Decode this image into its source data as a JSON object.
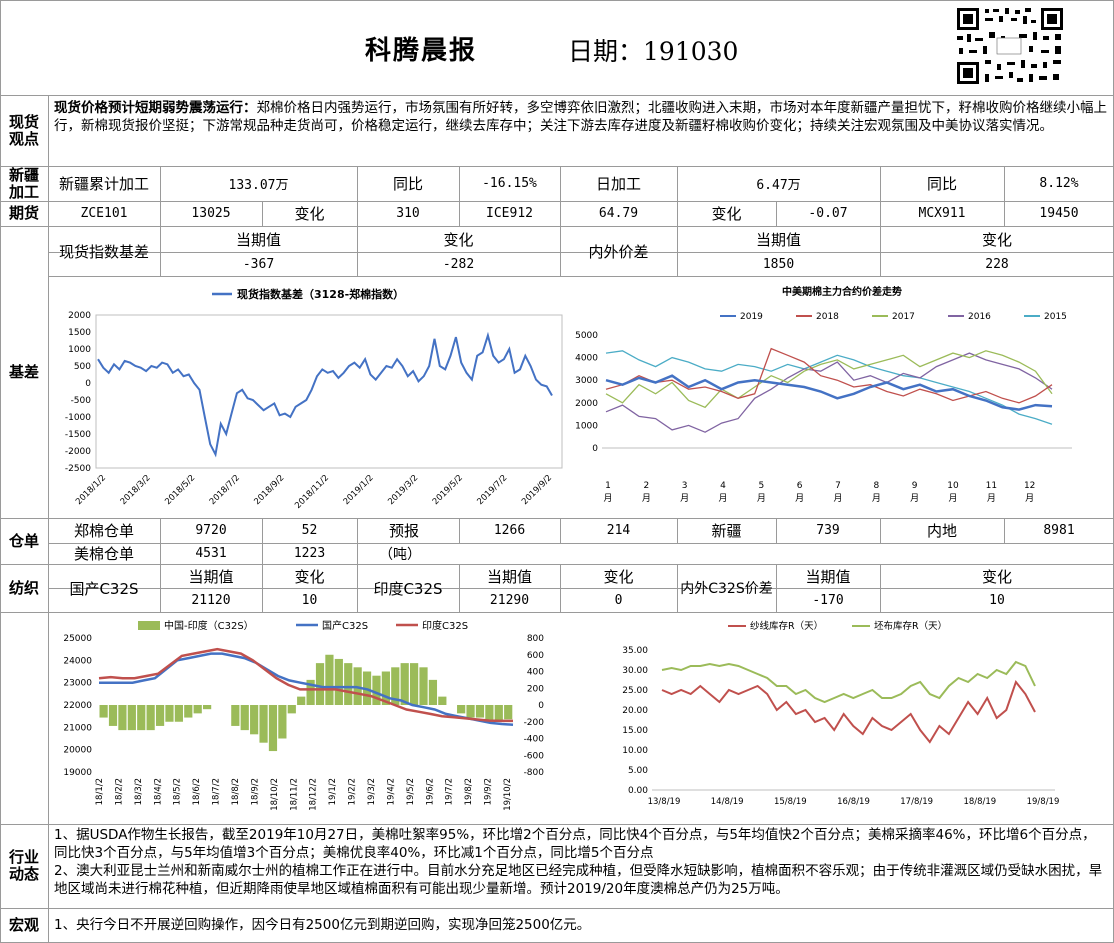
{
  "header": {
    "title": "科腾晨报",
    "date_label": "日期：",
    "date": "191030"
  },
  "sections": {
    "spot": "现货观点",
    "xinjiang": "新疆加工",
    "futures": "期货",
    "basis": "基差",
    "warehouse": "仓单",
    "yarn": "纺织",
    "industry": "行业动态",
    "macro": "宏观"
  },
  "spot_view": {
    "headline": "现货价格预计短期弱势震荡运行：",
    "body": "郑棉价格日内强势运行，市场氛围有所好转，多空博弈依旧激烈；北疆收购进入末期，市场对本年度新疆产量担忧下，籽棉收购价格继续小幅上行，新棉现货报价坚挺；下游常规品种走货尚可，价格稳定运行，继续去库存中；关注下游去库存进度及新疆籽棉收购价变化；持续关注宏观氛围及中美协议落实情况。"
  },
  "xinjiang": {
    "c1": "新疆累计加工",
    "c2": "133.07万",
    "c3": "同比",
    "c4": "-16.15%",
    "c5": "日加工",
    "c6": "6.47万",
    "c7": "同比",
    "c8": "8.12%"
  },
  "futures": {
    "c1": "ZCE101",
    "c2": "13025",
    "c3": "变化",
    "c4": "310",
    "c5": "ICE912",
    "c6": "64.79",
    "c7": "变化",
    "c8": "-0.07",
    "c9": "MCX911",
    "c10": "19450"
  },
  "basis_table": {
    "spot_label": "现货指数基差",
    "h1": "当期值",
    "v1": "-367",
    "h2": "变化",
    "v2": "-282",
    "diff_label": "内外价差",
    "h3": "当期值",
    "v3": "1850",
    "h4": "变化",
    "v4": "228"
  },
  "warehouse": {
    "zc_label": "郑棉仓单",
    "zc_v1": "9720",
    "zc_v2": "52",
    "forecast": "预报",
    "unit": "（吨）",
    "fc_v1": "1266",
    "fc_v2": "214",
    "xj_label": "新疆",
    "xj_v": "739",
    "nd_label": "内地",
    "nd_v": "8981",
    "us_label": "美棉仓单",
    "us_v1": "4531",
    "us_v2": "1223"
  },
  "yarn": {
    "dom_label": "国产C32S",
    "h1": "当期值",
    "v1": "21120",
    "h2": "变化",
    "v2": "10",
    "ind_label": "印度C32S",
    "h3": "当期值",
    "v3": "21290",
    "h4": "变化",
    "v4": "0",
    "diff_label": "内外C32S价差",
    "h5": "当期值",
    "v5": "-170",
    "h6": "变化",
    "v6": "10"
  },
  "industry": {
    "item1": "1、据USDA作物生长报告，截至2019年10月27日，美棉吐絮率95%，环比增2个百分点，同比快4个百分点，与5年均值快2个百分点；美棉采摘率46%，环比增6个百分点，同比快3个百分点，与5年均值增3个百分点；美棉优良率40%，环比减1个百分点，同比增5个百分点",
    "item2": "2、澳大利亚昆士兰州和新南威尔士州的植棉工作正在进行中。目前水分充足地区已经完成种植，但受降水短缺影响，植棉面积不容乐观；由于传统非灌溉区域仍受缺水困扰，旱地区域尚未进行棉花种植，但近期降雨使旱地区域植棉面积有可能出现少量新增。预计2019/20年度澳棉总产仍为25万吨。"
  },
  "macro": {
    "item1": "1、央行今日不开展逆回购操作，因今日有2500亿元到期逆回购，实现净回笼2500亿元。"
  },
  "chart_data": [
    {
      "type": "line",
      "title": "",
      "series": [
        {
          "name": "现货指数基差（3128-郑棉指数）",
          "color": "#4472c4",
          "values": [
            700,
            450,
            300,
            550,
            400,
            650,
            600,
            500,
            450,
            350,
            500,
            450,
            600,
            550,
            300,
            400,
            200,
            250,
            0,
            -200,
            -1000,
            -1800,
            -2100,
            -1200,
            -1500,
            -900,
            -300,
            -200,
            -450,
            -500,
            -650,
            -800,
            -700,
            -600,
            -950,
            -900,
            -1000,
            -700,
            -600,
            -500,
            -200,
            200,
            400,
            300,
            350,
            150,
            300,
            500,
            600,
            450,
            700,
            250,
            100,
            300,
            500,
            450,
            700,
            500,
            200,
            350,
            50,
            200,
            500,
            1300,
            500,
            400,
            800,
            1350,
            600,
            300,
            100,
            800,
            900,
            1400,
            800,
            600,
            700,
            1000,
            300,
            400,
            800,
            500,
            100,
            -50,
            -100,
            -367
          ]
        }
      ],
      "xticks": [
        "2018/1/2",
        "2018/3/2",
        "2018/5/2",
        "2018/7/2",
        "2018/9/2",
        "2018/11/2",
        "2019/1/2",
        "2019/3/2",
        "2019/5/2",
        "2019/7/2",
        "2019/9/2"
      ],
      "ylim": [
        -2500,
        2000
      ],
      "yticks": [
        "2000",
        "1500",
        "1000",
        "500",
        "0",
        "-500",
        "-1000",
        "-1500",
        "-2000",
        "-2500"
      ]
    },
    {
      "type": "line",
      "title": "中美期棉主力合约价差走势",
      "xticks": [
        "1月",
        "2月",
        "3月",
        "4月",
        "5月",
        "6月",
        "7月",
        "8月",
        "9月",
        "10月",
        "11月",
        "12月"
      ],
      "yticks": [
        "5000",
        "4000",
        "3000",
        "2000",
        "1000",
        "0"
      ],
      "ylim": [
        0,
        5000
      ],
      "series": [
        {
          "name": "2019",
          "color": "#4472c4",
          "values": [
            3000,
            2800,
            3100,
            2900,
            3200,
            2700,
            3000,
            2600,
            2900,
            3000,
            2900,
            2800,
            2700,
            2500,
            2200,
            2400,
            2700,
            2900,
            2600,
            2800,
            2500,
            2600,
            2300,
            2100,
            1800,
            1700,
            1900,
            1850
          ]
        },
        {
          "name": "2018",
          "color": "#c0504d",
          "values": [
            2600,
            2800,
            3200,
            2900,
            3000,
            2600,
            2700,
            2500,
            2200,
            2400,
            4400,
            4100,
            3800,
            3200,
            3000,
            2700,
            2800,
            2500,
            2300,
            2600,
            2400,
            2100,
            2300,
            2500,
            2200,
            2000,
            2300,
            2800
          ]
        },
        {
          "name": "2017",
          "color": "#9bbb59",
          "values": [
            2400,
            2000,
            2800,
            2400,
            2900,
            2100,
            1800,
            2600,
            2200,
            2700,
            3200,
            2900,
            3400,
            3700,
            3900,
            3500,
            3700,
            3900,
            4100,
            3600,
            3900,
            4200,
            4000,
            4300,
            4100,
            3800,
            3400,
            2400
          ]
        },
        {
          "name": "2016",
          "color": "#8064a2",
          "values": [
            1600,
            1900,
            1400,
            1300,
            800,
            1000,
            700,
            1100,
            1300,
            2200,
            2600,
            3100,
            3500,
            3400,
            3800,
            3000,
            3200,
            2900,
            3300,
            3100,
            3600,
            3900,
            4200,
            3900,
            3700,
            3500,
            3100,
            2600
          ]
        },
        {
          "name": "2015",
          "color": "#4bacc6",
          "values": [
            4200,
            4300,
            3900,
            3600,
            4000,
            3800,
            3500,
            3400,
            3700,
            3600,
            3400,
            3700,
            3500,
            3800,
            4100,
            3900,
            3600,
            3400,
            3200,
            3100,
            2900,
            2700,
            2500,
            2200,
            1900,
            1500,
            1300,
            1050
          ]
        }
      ]
    },
    {
      "type": "bar-line",
      "title": "",
      "series": [
        {
          "name": "中国-印度（C32S）",
          "color": "#9bbb59",
          "axis": "right",
          "values": [
            -150,
            -250,
            -300,
            -300,
            -300,
            -300,
            -250,
            -200,
            -200,
            -150,
            -100,
            -50,
            0,
            0,
            -250,
            -300,
            -350,
            -450,
            -550,
            -400,
            -100,
            100,
            300,
            500,
            600,
            550,
            500,
            450,
            400,
            350,
            400,
            450,
            500,
            500,
            450,
            300,
            100,
            0,
            -100,
            -150,
            -150,
            -200,
            -200,
            -170
          ]
        },
        {
          "name": "国产C32S",
          "color": "#4472c4",
          "axis": "left",
          "values": [
            23000,
            23000,
            23000,
            23000,
            23100,
            23200,
            23600,
            24000,
            24100,
            24200,
            24300,
            24300,
            24200,
            24100,
            23900,
            23600,
            23300,
            23100,
            23000,
            22900,
            22800,
            22800,
            22800,
            22800,
            22700,
            22500,
            22300,
            22200,
            22000,
            21900,
            21800,
            21600,
            21500,
            21400,
            21300,
            21200,
            21150,
            21120
          ]
        },
        {
          "name": "印度C32S",
          "color": "#c0504d",
          "axis": "left",
          "values": [
            23200,
            23250,
            23200,
            23200,
            23300,
            23400,
            23800,
            24200,
            24300,
            24400,
            24500,
            24400,
            24300,
            24000,
            23600,
            23200,
            22900,
            22700,
            22700,
            22700,
            22700,
            22600,
            22500,
            22400,
            22200,
            22000,
            21800,
            21700,
            21600,
            21500,
            21450,
            21400,
            21350,
            21300,
            21290,
            21290
          ]
        }
      ],
      "xticks": [
        "18/1/2",
        "18/2/2",
        "18/3/2",
        "18/4/2",
        "18/5/2",
        "18/6/2",
        "18/7/2",
        "18/8/2",
        "18/9/2",
        "18/10/2",
        "18/11/2",
        "18/12/2",
        "19/1/2",
        "19/2/2",
        "19/3/2",
        "19/4/2",
        "19/5/2",
        "19/6/2",
        "19/7/2",
        "19/8/2",
        "19/9/2",
        "19/10/2"
      ],
      "yticks_left": [
        "25000",
        "24000",
        "23000",
        "22000",
        "21000",
        "20000",
        "19000"
      ],
      "yticks_right": [
        "800",
        "600",
        "400",
        "200",
        "0",
        "-200",
        "-400",
        "-600",
        "-800"
      ],
      "ylim_left": [
        19000,
        25000
      ],
      "ylim_right": [
        -800,
        800
      ]
    },
    {
      "type": "line",
      "title": "",
      "series": [
        {
          "name": "纱线库存R（天）",
          "color": "#c0504d",
          "values": [
            25,
            24,
            25,
            24,
            26,
            24,
            22,
            25,
            24,
            25,
            26,
            24,
            20,
            22,
            19,
            20,
            17,
            18,
            15,
            19,
            16,
            14,
            18,
            16,
            15,
            17,
            19,
            15,
            12,
            16,
            14,
            18,
            22,
            19,
            23,
            18,
            20,
            27,
            24,
            19.5
          ]
        },
        {
          "name": "坯布库存R（天）",
          "color": "#9bbb59",
          "values": [
            30,
            30.5,
            30,
            31,
            31,
            31.5,
            31,
            31.5,
            31,
            30,
            29,
            28,
            26,
            26,
            24,
            25,
            23,
            22,
            23,
            24,
            23,
            24,
            25,
            23,
            23,
            24,
            26,
            27,
            24,
            23,
            26,
            28,
            27,
            29,
            28,
            30,
            29,
            32,
            31,
            26
          ]
        }
      ],
      "xticks": [
        "13/8/19",
        "14/8/19",
        "15/8/19",
        "16/8/19",
        "17/8/19",
        "18/8/19",
        "19/8/19"
      ],
      "yticks": [
        "35.00",
        "30.00",
        "25.00",
        "20.00",
        "15.00",
        "10.00",
        "5.00",
        "0.00"
      ],
      "ylim": [
        0,
        35
      ]
    }
  ]
}
